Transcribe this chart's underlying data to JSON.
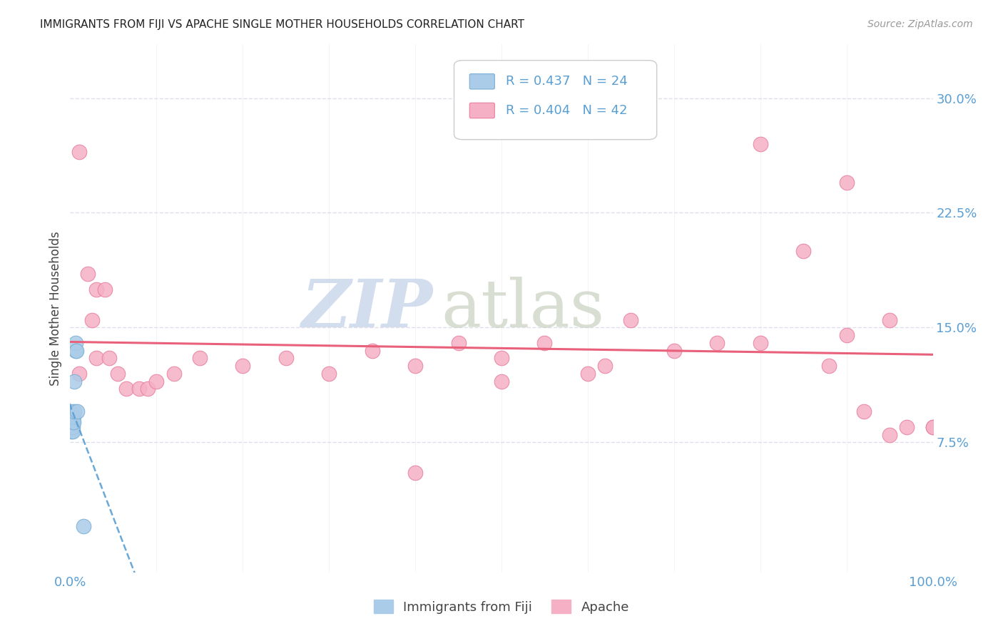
{
  "title": "IMMIGRANTS FROM FIJI VS APACHE SINGLE MOTHER HOUSEHOLDS CORRELATION CHART",
  "source": "Source: ZipAtlas.com",
  "ylabel_label": "Single Mother Households",
  "y_tick_values": [
    0.075,
    0.15,
    0.225,
    0.3
  ],
  "y_tick_labels": [
    "7.5%",
    "15.0%",
    "22.5%",
    "30.0%"
  ],
  "xlim": [
    0.0,
    1.0
  ],
  "ylim": [
    -0.01,
    0.335
  ],
  "fiji_x": [
    0.0005,
    0.001,
    0.001,
    0.001,
    0.001,
    0.0015,
    0.002,
    0.002,
    0.002,
    0.002,
    0.003,
    0.003,
    0.003,
    0.003,
    0.003,
    0.004,
    0.004,
    0.005,
    0.005,
    0.006,
    0.006,
    0.007,
    0.008,
    0.015
  ],
  "fiji_y": [
    0.095,
    0.092,
    0.088,
    0.085,
    0.082,
    0.091,
    0.094,
    0.091,
    0.088,
    0.085,
    0.093,
    0.09,
    0.088,
    0.085,
    0.082,
    0.092,
    0.088,
    0.115,
    0.095,
    0.135,
    0.14,
    0.135,
    0.095,
    0.02
  ],
  "apache_x": [
    0.01,
    0.01,
    0.02,
    0.025,
    0.03,
    0.03,
    0.04,
    0.045,
    0.055,
    0.065,
    0.08,
    0.09,
    0.1,
    0.12,
    0.15,
    0.2,
    0.25,
    0.3,
    0.35,
    0.4,
    0.45,
    0.5,
    0.55,
    0.6,
    0.65,
    0.7,
    0.75,
    0.8,
    0.85,
    0.9,
    0.95,
    1.0,
    0.88,
    0.92,
    0.97,
    0.62,
    0.5,
    0.4,
    0.8,
    0.9,
    0.95,
    1.0
  ],
  "apache_y": [
    0.265,
    0.12,
    0.185,
    0.155,
    0.175,
    0.13,
    0.175,
    0.13,
    0.12,
    0.11,
    0.11,
    0.11,
    0.115,
    0.12,
    0.13,
    0.125,
    0.13,
    0.12,
    0.135,
    0.125,
    0.14,
    0.13,
    0.14,
    0.12,
    0.155,
    0.135,
    0.14,
    0.14,
    0.2,
    0.145,
    0.155,
    0.085,
    0.125,
    0.095,
    0.085,
    0.125,
    0.115,
    0.055,
    0.27,
    0.245,
    0.08,
    0.085
  ],
  "fiji_scatter_color": "#aacce8",
  "fiji_scatter_edge": "#7aaed4",
  "apache_scatter_color": "#f5b0c5",
  "apache_scatter_edge": "#e880a0",
  "fiji_line_color": "#5a9fd4",
  "apache_line_color": "#e8607a",
  "background_color": "#ffffff",
  "grid_color": "#d8d8e8",
  "watermark_zip": "ZIP",
  "watermark_atlas": "atlas",
  "watermark_color_zip": "#c0cfe8",
  "watermark_color_atlas": "#c8d0c0",
  "legend_r1": "R = 0.437",
  "legend_n1": "N = 24",
  "legend_r2": "R = 0.404",
  "legend_n2": "N = 42",
  "legend_color": "#5a9fd4",
  "bottom_legend_labels": [
    "Immigrants from Fiji",
    "Apache"
  ]
}
